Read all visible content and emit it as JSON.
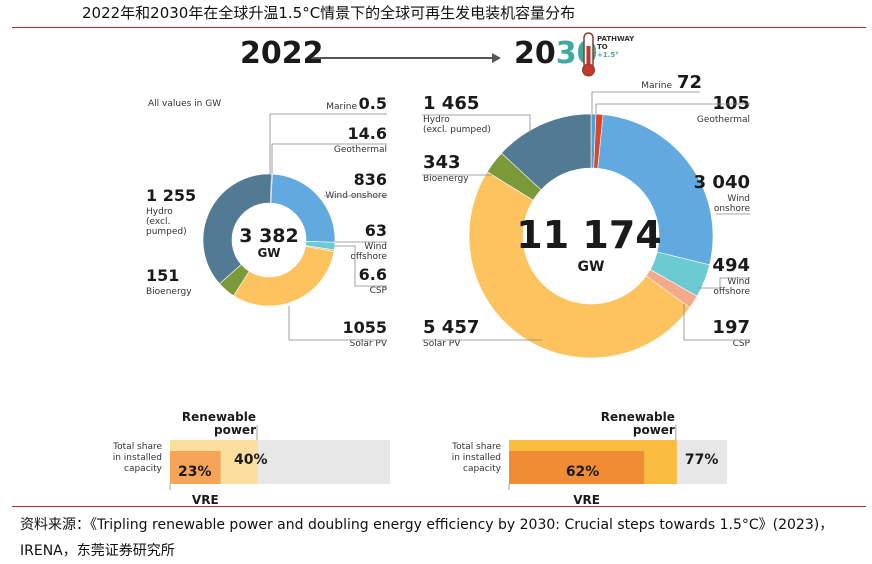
{
  "title": "2022年和2030年在全球升温1.5°C情景下的全球可再生发电装机容量分布",
  "header": {
    "year_left": "2022",
    "year_right_a": "20",
    "year_right_b": "30",
    "pathway": [
      "PATHWAY",
      "TO",
      "+1.5°"
    ]
  },
  "note": "All values in GW",
  "colors": {
    "marine": "#4f9fd8",
    "geothermal": "#d9472b",
    "wind_onshore": "#62a9e0",
    "wind_offshore": "#6ccbd1",
    "csp": "#f4a98b",
    "solar_pv": "#fcc35f",
    "bioenergy": "#7a9a3a",
    "hydro": "#527a92",
    "re_light": "#fddf9d",
    "re_mid": "#fabc3f",
    "vre_light": "#f6a45a",
    "vre_dark": "#f08c34",
    "track": "#e7e7e7"
  },
  "chart_data": [
    {
      "type": "pie",
      "year": "2022",
      "center_value": "3 382",
      "center_unit": "GW",
      "slices": [
        {
          "name": "Marine",
          "value": 0.5,
          "label": "0.5",
          "color_key": "marine"
        },
        {
          "name": "Geothermal",
          "value": 14.6,
          "label": "14.6",
          "color_key": "geothermal"
        },
        {
          "name": "Wind onshore",
          "value": 836,
          "label": "836",
          "color_key": "wind_onshore"
        },
        {
          "name": "Wind offshore",
          "value": 63,
          "label": "63",
          "color_key": "wind_offshore"
        },
        {
          "name": "CSP",
          "value": 6.6,
          "label": "6.6",
          "color_key": "csp"
        },
        {
          "name": "Solar PV",
          "value": 1055,
          "label": "1055",
          "color_key": "solar_pv"
        },
        {
          "name": "Bioenergy",
          "value": 151,
          "label": "151",
          "color_key": "bioenergy"
        },
        {
          "name": "Hydro (excl. pumped)",
          "value": 1255,
          "label": "1 255",
          "color_key": "hydro"
        }
      ]
    },
    {
      "type": "pie",
      "year": "2030",
      "center_value": "11 174",
      "center_unit": "GW",
      "slices": [
        {
          "name": "Marine",
          "value": 72,
          "label": "72",
          "color_key": "marine"
        },
        {
          "name": "Geothermal",
          "value": 105,
          "label": "105",
          "color_key": "geothermal"
        },
        {
          "name": "Wind onshore",
          "value": 3040,
          "label": "3 040",
          "color_key": "wind_onshore"
        },
        {
          "name": "Wind offshore",
          "value": 494,
          "label": "494",
          "color_key": "wind_offshore"
        },
        {
          "name": "CSP",
          "value": 197,
          "label": "197",
          "color_key": "csp"
        },
        {
          "name": "Solar PV",
          "value": 5457,
          "label": "5 457",
          "color_key": "solar_pv"
        },
        {
          "name": "Bioenergy",
          "value": 343,
          "label": "343",
          "color_key": "bioenergy"
        },
        {
          "name": "Hydro (excl. pumped)",
          "value": 1465,
          "label": "1 465",
          "color_key": "hydro"
        }
      ]
    },
    {
      "type": "bar",
      "year": "2022",
      "renewable_label": [
        "Renewable",
        "power"
      ],
      "share_label": [
        "Total share",
        "in installed",
        "capacity"
      ],
      "vre_label": "VRE",
      "renewable_share": 40,
      "vre_share": 23,
      "renewable_text": "40%",
      "vre_text": "23%"
    },
    {
      "type": "bar",
      "year": "2030",
      "renewable_label": [
        "Renewable",
        "power"
      ],
      "share_label": [
        "Total share",
        "in installed",
        "capacity"
      ],
      "vre_label": "VRE",
      "renewable_share": 77,
      "vre_share": 62,
      "renewable_text": "77%",
      "vre_text": "62%"
    }
  ],
  "footer": "资料来源：《Tripling renewable power and doubling energy efficiency by 2030: Crucial steps towards 1.5°C》(2023)，IRENA，东莞证券研究所"
}
